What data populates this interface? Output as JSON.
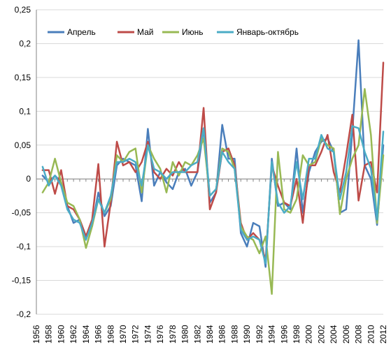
{
  "chart_data": {
    "type": "line",
    "title": "",
    "xlabel": "",
    "ylabel": "",
    "x": [
      1957,
      1958,
      1959,
      1960,
      1961,
      1962,
      1963,
      1964,
      1965,
      1966,
      1967,
      1968,
      1969,
      1970,
      1971,
      1972,
      1973,
      1974,
      1975,
      1976,
      1977,
      1978,
      1979,
      1980,
      1981,
      1982,
      1983,
      1984,
      1985,
      1986,
      1987,
      1988,
      1989,
      1990,
      1991,
      1992,
      1993,
      1994,
      1995,
      1996,
      1997,
      1998,
      1999,
      2000,
      2001,
      2002,
      2003,
      2004,
      2005,
      2006,
      2007,
      2008,
      2009,
      2010,
      2011,
      2012
    ],
    "xticks": [
      "1956",
      "1958",
      "1960",
      "1962",
      "1964",
      "1966",
      "1968",
      "1970",
      "1972",
      "1974",
      "1976",
      "1978",
      "1980",
      "1982",
      "1984",
      "1986",
      "1988",
      "1990",
      "1992",
      "1994",
      "1996",
      "1998",
      "2000",
      "2002",
      "2004",
      "2006",
      "2008",
      "2010",
      "2012"
    ],
    "yticks": [
      "-0,2",
      "-0,15",
      "-0,1",
      "-0,05",
      "0",
      "0,05",
      "0,1",
      "0,15",
      "0,2",
      "0,25"
    ],
    "ylim": [
      -0.2,
      0.25
    ],
    "grid": true,
    "legend_position": "top",
    "series": [
      {
        "name": "Апрель",
        "color": "#4a7ebb",
        "values": [
          0.005,
          -0.005,
          0.005,
          -0.005,
          -0.04,
          -0.065,
          -0.06,
          -0.085,
          -0.07,
          -0.02,
          -0.055,
          -0.04,
          0.02,
          0.03,
          0.025,
          0.02,
          -0.033,
          0.074,
          -0.01,
          0.01,
          -0.005,
          -0.015,
          0.01,
          0.015,
          -0.01,
          0.01,
          0.075,
          -0.035,
          -0.02,
          0.08,
          0.03,
          0.03,
          -0.08,
          -0.1,
          -0.065,
          -0.07,
          -0.13,
          0.03,
          -0.04,
          -0.035,
          -0.045,
          0.045,
          -0.05,
          0.01,
          0.04,
          0.055,
          0.06,
          0.04,
          -0.05,
          -0.045,
          0.07,
          0.205,
          0.02,
          0.0,
          -0.068,
          0.05
        ]
      },
      {
        "name": "Май",
        "color": "#be4b48",
        "values": [
          0.013,
          0.013,
          -0.022,
          0.013,
          -0.04,
          -0.045,
          -0.06,
          -0.085,
          -0.06,
          0.022,
          -0.1,
          -0.035,
          0.055,
          0.02,
          0.025,
          0.01,
          0.025,
          0.055,
          0.01,
          0.0,
          0.015,
          0.005,
          0.025,
          0.01,
          0.01,
          0.01,
          0.105,
          -0.045,
          -0.02,
          0.04,
          0.045,
          0.02,
          -0.065,
          -0.09,
          -0.08,
          -0.09,
          -0.12,
          0.02,
          -0.01,
          -0.035,
          -0.04,
          0.0,
          -0.065,
          0.02,
          0.02,
          0.04,
          0.065,
          0.01,
          -0.02,
          0.035,
          0.095,
          -0.032,
          0.02,
          0.025,
          -0.02,
          0.172
        ]
      },
      {
        "name": "Июнь",
        "color": "#98b954",
        "values": [
          -0.02,
          -0.005,
          0.03,
          -0.005,
          -0.035,
          -0.04,
          -0.06,
          -0.102,
          -0.07,
          -0.03,
          -0.05,
          -0.03,
          0.035,
          0.025,
          0.04,
          0.045,
          -0.02,
          0.05,
          0.03,
          0.015,
          -0.02,
          0.025,
          0.005,
          0.025,
          0.02,
          0.035,
          0.06,
          -0.025,
          -0.015,
          0.045,
          0.04,
          0.015,
          -0.07,
          -0.085,
          -0.09,
          -0.11,
          -0.085,
          -0.17,
          0.04,
          -0.045,
          -0.05,
          -0.03,
          0.035,
          0.02,
          0.025,
          0.06,
          0.05,
          0.045,
          -0.052,
          0.0,
          0.03,
          0.05,
          0.133,
          0.065,
          -0.065,
          0.035
        ]
      },
      {
        "name": "Январь-октябрь",
        "color": "#4bacc6",
        "values": [
          0.018,
          -0.01,
          0.005,
          -0.01,
          -0.045,
          -0.06,
          -0.065,
          -0.09,
          -0.065,
          -0.03,
          -0.05,
          -0.025,
          0.025,
          0.025,
          0.03,
          0.025,
          -0.01,
          0.05,
          0.015,
          0.01,
          0.0,
          0.01,
          0.01,
          0.01,
          0.02,
          0.025,
          0.075,
          -0.025,
          -0.015,
          0.04,
          0.025,
          0.015,
          -0.075,
          -0.09,
          -0.085,
          -0.09,
          -0.125,
          0.025,
          -0.035,
          -0.05,
          -0.04,
          0.025,
          -0.03,
          0.03,
          0.03,
          0.065,
          0.045,
          0.04,
          -0.03,
          0.01,
          0.078,
          0.075,
          0.04,
          0.015,
          -0.06,
          0.07
        ]
      }
    ]
  }
}
